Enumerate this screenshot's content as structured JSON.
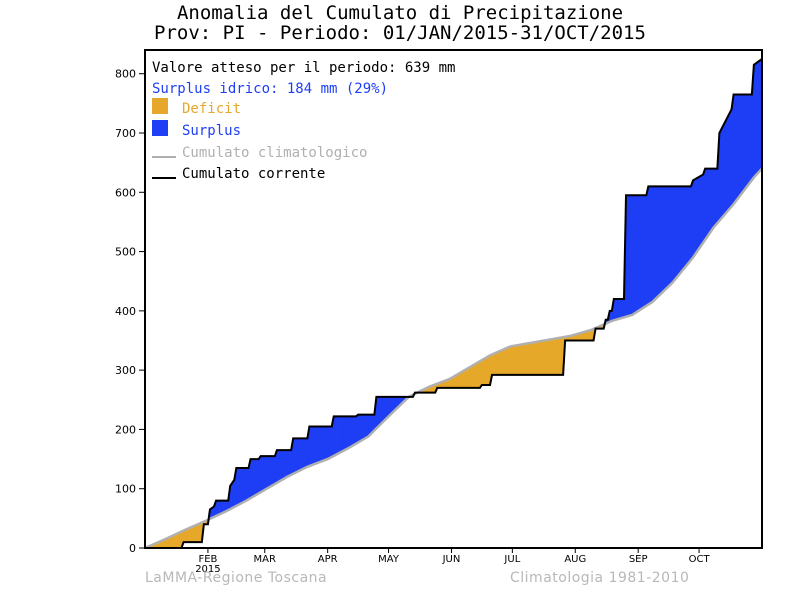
{
  "title_line1": "Anomalia del Cumulato di Precipitazione",
  "title_line2": "Prov: PI - Periodo: 01/JAN/2015-31/OCT/2015",
  "footer_left": "LaMMA-Regione Toscana",
  "footer_right": "Climatologia 1981-2010",
  "legend": {
    "expected": "Valore atteso per il periodo: 639 mm",
    "surplus_text": "Surplus idrico: 184 mm (29%)",
    "deficit_label": "Deficit",
    "surplus_label": "Surplus",
    "climatological_label": "Cumulato climatologico",
    "current_label": "Cumulato corrente"
  },
  "colors": {
    "deficit": "#e6a82a",
    "surplus": "#1f3ff5",
    "climatological": "#b0b0b0",
    "current": "#000000",
    "surplus_text": "#1f3ff5"
  },
  "chart_data": {
    "type": "area",
    "x_unit": "day of year 2015",
    "xlim": [
      0,
      304
    ],
    "ylim": [
      0,
      840
    ],
    "yticks": [
      0,
      100,
      200,
      300,
      400,
      500,
      600,
      700,
      800
    ],
    "xticks": [
      {
        "label": "FEB",
        "day": 31
      },
      {
        "label": "MAR",
        "day": 59
      },
      {
        "label": "APR",
        "day": 90
      },
      {
        "label": "MAY",
        "day": 120
      },
      {
        "label": "JUN",
        "day": 151
      },
      {
        "label": "JUL",
        "day": 181
      },
      {
        "label": "AUG",
        "day": 212
      },
      {
        "label": "SEP",
        "day": 243
      },
      {
        "label": "OCT",
        "day": 273
      }
    ],
    "year_label": "2015",
    "year_label_day": 31,
    "series": [
      {
        "name": "Cumulato climatologico",
        "x": [
          0,
          10,
          20,
          30,
          40,
          50,
          60,
          70,
          80,
          90,
          100,
          110,
          120,
          130,
          140,
          150,
          160,
          170,
          180,
          190,
          200,
          210,
          220,
          230,
          240,
          250,
          260,
          270,
          280,
          290,
          300,
          304
        ],
        "values": [
          0,
          15,
          31,
          46,
          62,
          80,
          100,
          120,
          137,
          150,
          168,
          188,
          222,
          255,
          272,
          285,
          305,
          325,
          340,
          346,
          352,
          358,
          368,
          383,
          393,
          415,
          448,
          490,
          540,
          580,
          625,
          640
        ]
      },
      {
        "name": "Cumulato corrente",
        "x": [
          0,
          18,
          19,
          28,
          29,
          31,
          32,
          34,
          35,
          41,
          42,
          44,
          45,
          51,
          52,
          56,
          57,
          64,
          65,
          72,
          73,
          80,
          81,
          92,
          93,
          104,
          105,
          113,
          114,
          132,
          133,
          143,
          144,
          165,
          166,
          170,
          171,
          206,
          207,
          221,
          222,
          226,
          227,
          228,
          229,
          230,
          231,
          236,
          237,
          247,
          248,
          269,
          270,
          275,
          276,
          282,
          283,
          289,
          290,
          299,
          300,
          304
        ],
        "values": [
          0,
          0,
          10,
          10,
          40,
          40,
          65,
          70,
          80,
          80,
          105,
          115,
          135,
          135,
          150,
          150,
          155,
          155,
          165,
          165,
          185,
          185,
          205,
          205,
          222,
          222,
          225,
          225,
          255,
          255,
          262,
          262,
          270,
          270,
          275,
          275,
          292,
          292,
          350,
          350,
          370,
          370,
          385,
          385,
          400,
          400,
          420,
          420,
          595,
          595,
          610,
          610,
          620,
          630,
          640,
          640,
          700,
          740,
          765,
          765,
          815,
          825
        ]
      }
    ],
    "annotations": [
      "Valore atteso per il periodo: 639 mm",
      "Surplus idrico: 184 mm (29%)"
    ],
    "legend_position": "top-left"
  }
}
